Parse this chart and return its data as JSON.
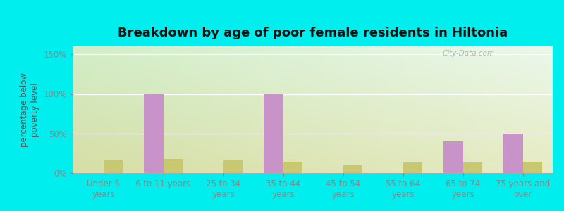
{
  "title": "Breakdown by age of poor female residents in Hiltonia",
  "ylabel": "percentage below\npoverty level",
  "categories": [
    "Under 5\nyears",
    "6 to 11 years",
    "25 to 34\nyears",
    "35 to 44\nyears",
    "45 to 54\nyears",
    "55 to 64\nyears",
    "65 to 74\nyears",
    "75 years and\nover"
  ],
  "hiltonia_values": [
    0,
    100,
    0,
    100,
    0,
    0,
    40,
    50
  ],
  "georgia_values": [
    17,
    18,
    16,
    14,
    10,
    13,
    13,
    14
  ],
  "hiltonia_color": "#C893C8",
  "georgia_color": "#C8C870",
  "ylim": [
    0,
    160
  ],
  "yticks": [
    0,
    50,
    100,
    150
  ],
  "ytick_labels": [
    "0%",
    "50%",
    "100%",
    "150%"
  ],
  "outer_bg": "#00EEEE",
  "bar_width": 0.32,
  "title_fontsize": 13,
  "axis_label_fontsize": 8.5,
  "tick_fontsize": 8.5,
  "legend_fontsize": 9.5,
  "watermark": "City-Data.com",
  "grad_top_left": "#c8e8b0",
  "grad_top_right": "#e8f5e8",
  "grad_bottom_left": "#e8ebb0",
  "grad_bottom_right": "#f0f0d0"
}
